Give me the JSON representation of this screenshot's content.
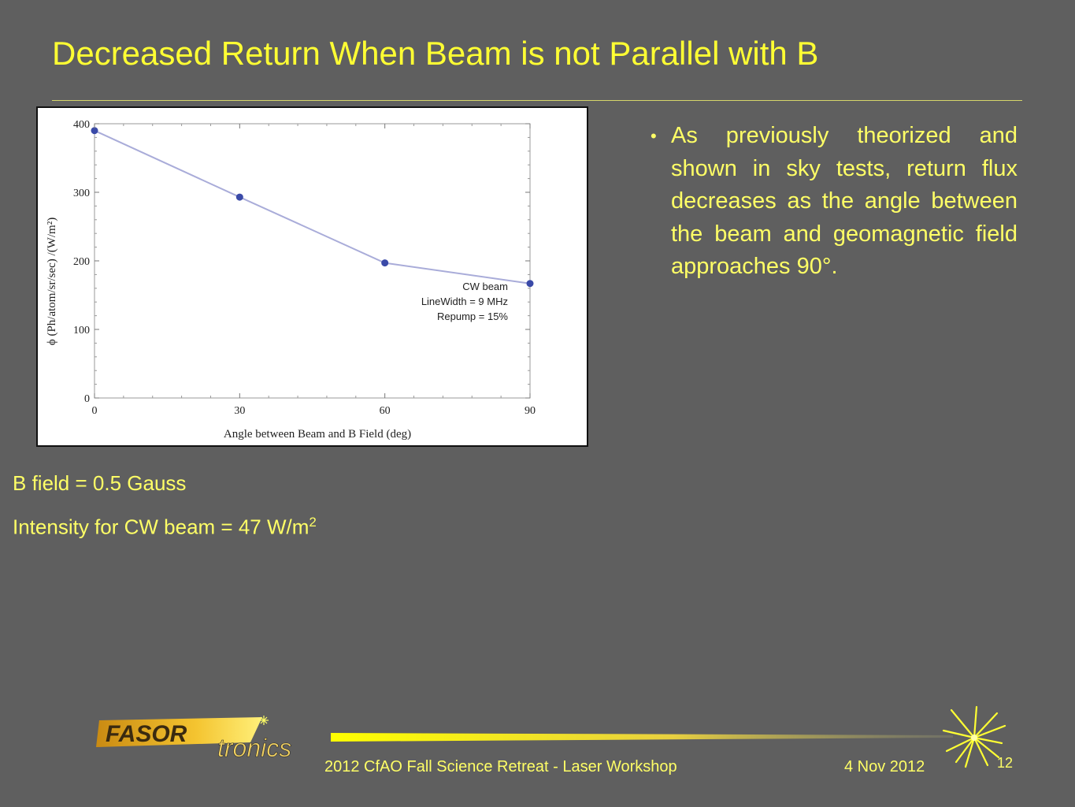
{
  "slide": {
    "title": "Decreased Return When Beam is not Parallel with B",
    "bullet": "As previously theorized and shown in sky tests, return flux decreases as the angle between the beam and geomagnetic field approaches 90°.",
    "notes": {
      "bfield": "B field = 0.5 Gauss",
      "intensity_text": "Intensity for CW beam = 47 W/m",
      "intensity_sup": "2"
    },
    "footer": {
      "event": "2012 CfAO Fall Science Retreat - Laser Workshop",
      "date": "4 Nov 2012",
      "page": "12"
    },
    "logo": {
      "part1": "FASOR",
      "part2": "tronics"
    }
  },
  "colors": {
    "background": "#5f5f5f",
    "title": "#ffff33",
    "text": "#ffff66",
    "series_line": "#a9acd9",
    "series_marker": "#3a4aa8"
  },
  "chart_data": {
    "type": "line",
    "xlabel": "Angle between Beam and B Field (deg)",
    "ylabel": "ϕ (Ph/atom/sr/sec) /(W/m²)",
    "x": [
      0,
      30,
      60,
      90
    ],
    "y": [
      390,
      293,
      197,
      167
    ],
    "xlim": [
      0,
      90
    ],
    "ylim": [
      0,
      400
    ],
    "xticks": [
      "0",
      "30",
      "60",
      "90"
    ],
    "yticks": [
      "0",
      "100",
      "200",
      "300",
      "400"
    ],
    "grid": false,
    "annotation": [
      "CW beam",
      "LineWidth = 9 MHz",
      "Repump =  15%"
    ]
  }
}
